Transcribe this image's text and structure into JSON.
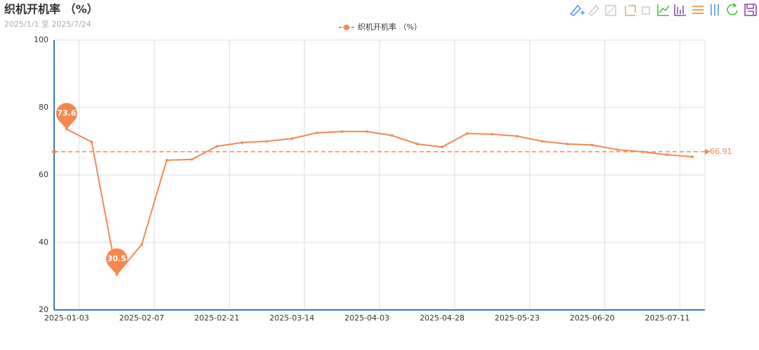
{
  "chart_data": {
    "type": "line",
    "title": "织机开机率 （%）",
    "subtitle": "2025/1/1 至 2025/7/24",
    "categories": [
      "2025-01-03",
      null,
      null,
      "2025-02-07",
      null,
      null,
      "2025-02-21",
      null,
      null,
      "2025-03-14",
      null,
      null,
      "2025-04-03",
      null,
      null,
      "2025-04-28",
      null,
      null,
      "2025-05-23",
      null,
      null,
      "2025-06-20",
      null,
      null,
      "2025-07-11",
      null
    ],
    "series": [
      {
        "name": "织机开机率 （%）",
        "color": "#f5874f",
        "values": [
          73.6,
          69.8,
          30.5,
          39.4,
          64.4,
          64.6,
          68.5,
          69.6,
          70.0,
          70.8,
          72.5,
          72.9,
          72.9,
          71.7,
          69.2,
          68.3,
          72.3,
          72.1,
          71.5,
          70.0,
          69.2,
          68.9,
          67.5,
          66.9,
          66.0,
          65.4
        ]
      }
    ],
    "mark_points": [
      0,
      2
    ],
    "average": 66.91,
    "ylim": [
      20,
      100
    ],
    "yticks": [
      20,
      40,
      60,
      80,
      100
    ],
    "grid": true,
    "legend_position": "top"
  }
}
